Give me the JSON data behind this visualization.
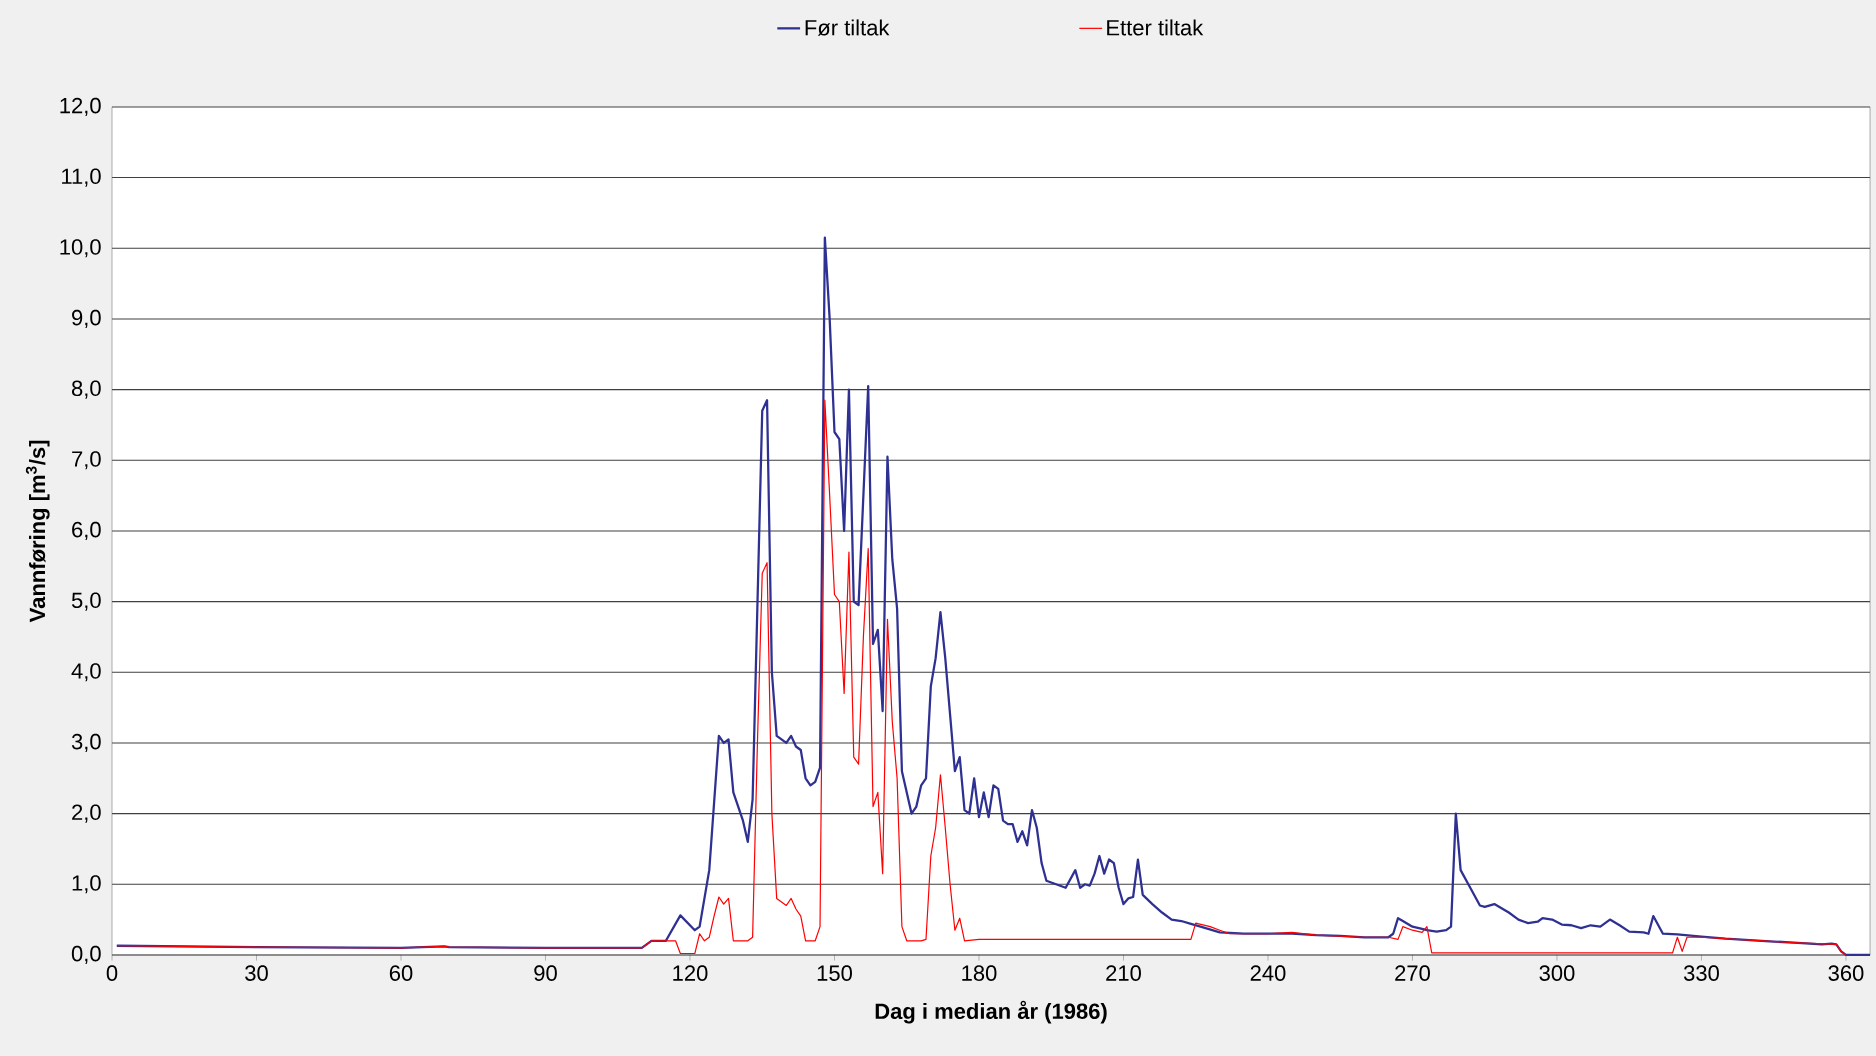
{
  "chart_data": {
    "type": "line",
    "xlabel": "Dag i median år (1986)",
    "ylabel": "Vannføring [m$^{3}$/s]",
    "xlim": [
      0,
      365
    ],
    "ylim": [
      0,
      12
    ],
    "xticks": [
      0,
      30,
      60,
      90,
      120,
      150,
      180,
      210,
      240,
      270,
      300,
      330,
      360
    ],
    "yticks": [
      {
        "value": 0,
        "label": "0,0"
      },
      {
        "value": 1,
        "label": "1,0"
      },
      {
        "value": 2,
        "label": "2,0"
      },
      {
        "value": 3,
        "label": "3,0"
      },
      {
        "value": 4,
        "label": "4,0"
      },
      {
        "value": 5,
        "label": "5,0"
      },
      {
        "value": 6,
        "label": "6,0"
      },
      {
        "value": 7,
        "label": "7,0"
      },
      {
        "value": 8,
        "label": "8,0"
      },
      {
        "value": 9,
        "label": "9,0"
      },
      {
        "value": 10,
        "label": "10,0"
      },
      {
        "value": 11,
        "label": "11,0"
      },
      {
        "value": 12,
        "label": "12,0"
      }
    ],
    "grid": "y",
    "legend": "top",
    "marker": "none",
    "line_style": "solid",
    "series": [
      {
        "name": "Før tiltak",
        "color": "#2e3192",
        "x": [
          1,
          30,
          60,
          69,
          70,
          90,
          110,
          112,
          115,
          118,
          121,
          122,
          124,
          126,
          127,
          128,
          129,
          131,
          132,
          133,
          135,
          136,
          137,
          138,
          139,
          140,
          141,
          142,
          143,
          144,
          145,
          146,
          147,
          148,
          149,
          150,
          151,
          152,
          153,
          154,
          155,
          156,
          157,
          158,
          159,
          160,
          161,
          162,
          163,
          164,
          165,
          166,
          167,
          168,
          169,
          170,
          171,
          172,
          173,
          174,
          175,
          176,
          177,
          178,
          179,
          180,
          181,
          182,
          183,
          184,
          185,
          186,
          187,
          188,
          189,
          190,
          191,
          192,
          193,
          194,
          196,
          198,
          200,
          201,
          202,
          203,
          204,
          205,
          206,
          207,
          208,
          209,
          210,
          211,
          212,
          213,
          214,
          216,
          218,
          220,
          222,
          224,
          226,
          230,
          235,
          240,
          245,
          250,
          255,
          260,
          265,
          266,
          267,
          268,
          270,
          272,
          273,
          275,
          277,
          278,
          279,
          280,
          282,
          284,
          285,
          287,
          290,
          292,
          294,
          296,
          297,
          299,
          301,
          303,
          305,
          307,
          309,
          311,
          313,
          315,
          318,
          319,
          320,
          322,
          325,
          330,
          335,
          340,
          345,
          350,
          355,
          357,
          358,
          359,
          360,
          365
        ],
        "values": [
          0.13,
          0.11,
          0.1,
          0.12,
          0.11,
          0.1,
          0.1,
          0.2,
          0.2,
          0.56,
          0.35,
          0.4,
          1.2,
          3.1,
          3.0,
          3.05,
          2.3,
          1.9,
          1.6,
          2.2,
          7.7,
          7.85,
          4.0,
          3.1,
          3.05,
          3.0,
          3.1,
          2.95,
          2.9,
          2.5,
          2.4,
          2.45,
          2.65,
          10.15,
          9.0,
          7.4,
          7.3,
          6.0,
          8.0,
          5.0,
          4.95,
          6.5,
          8.05,
          4.4,
          4.6,
          3.45,
          7.05,
          5.6,
          4.9,
          2.6,
          2.3,
          2.0,
          2.1,
          2.4,
          2.5,
          3.8,
          4.2,
          4.85,
          4.2,
          3.4,
          2.6,
          2.8,
          2.05,
          2.0,
          2.5,
          1.95,
          2.3,
          1.95,
          2.4,
          2.35,
          1.9,
          1.85,
          1.85,
          1.6,
          1.75,
          1.55,
          2.05,
          1.8,
          1.3,
          1.05,
          1.0,
          0.95,
          1.2,
          0.95,
          1.0,
          0.98,
          1.15,
          1.4,
          1.15,
          1.35,
          1.3,
          0.95,
          0.72,
          0.8,
          0.82,
          1.35,
          0.85,
          0.72,
          0.6,
          0.5,
          0.48,
          0.44,
          0.4,
          0.32,
          0.3,
          0.3,
          0.3,
          0.28,
          0.27,
          0.25,
          0.25,
          0.3,
          0.52,
          0.48,
          0.4,
          0.37,
          0.35,
          0.33,
          0.35,
          0.4,
          2.0,
          1.2,
          0.95,
          0.7,
          0.68,
          0.72,
          0.6,
          0.5,
          0.45,
          0.47,
          0.52,
          0.5,
          0.43,
          0.42,
          0.38,
          0.42,
          0.4,
          0.5,
          0.42,
          0.33,
          0.32,
          0.3,
          0.55,
          0.3,
          0.29,
          0.26,
          0.23,
          0.21,
          0.19,
          0.17,
          0.15,
          0.16,
          0.15,
          0.05,
          0.0,
          0.0
        ]
      },
      {
        "name": "Etter tiltak",
        "color": "#ff0000",
        "x": [
          1,
          30,
          60,
          69,
          70,
          90,
          110,
          112,
          115,
          116,
          117,
          118,
          120,
          121,
          122,
          123,
          124,
          125,
          126,
          127,
          128,
          129,
          131,
          132,
          133,
          134,
          135,
          136,
          137,
          138,
          139,
          140,
          141,
          142,
          143,
          144,
          146,
          147,
          148,
          149,
          150,
          151,
          152,
          153,
          154,
          155,
          156,
          157,
          158,
          159,
          160,
          161,
          162,
          163,
          164,
          165,
          168,
          169,
          170,
          171,
          172,
          173,
          174,
          175,
          176,
          177,
          180,
          200,
          224,
          225,
          228,
          230,
          232,
          240,
          245,
          250,
          260,
          265,
          267,
          268,
          270,
          272,
          273,
          274,
          300,
          320,
          324,
          325,
          326,
          327,
          330,
          340,
          350,
          358,
          359,
          360
        ],
        "values": [
          0.13,
          0.11,
          0.1,
          0.12,
          0.11,
          0.1,
          0.1,
          0.2,
          0.2,
          0.2,
          0.2,
          0.02,
          0.02,
          0.02,
          0.3,
          0.2,
          0.25,
          0.55,
          0.82,
          0.72,
          0.8,
          0.2,
          0.2,
          0.2,
          0.25,
          3.0,
          5.4,
          5.55,
          2.0,
          0.8,
          0.75,
          0.7,
          0.8,
          0.65,
          0.55,
          0.2,
          0.2,
          0.4,
          7.85,
          6.5,
          5.1,
          5.0,
          3.7,
          5.7,
          2.8,
          2.7,
          4.5,
          5.75,
          2.1,
          2.3,
          1.15,
          4.75,
          3.3,
          2.5,
          0.4,
          0.2,
          0.2,
          0.22,
          1.4,
          1.8,
          2.55,
          1.8,
          1.0,
          0.35,
          0.52,
          0.2,
          0.22,
          0.22,
          0.22,
          0.45,
          0.4,
          0.35,
          0.3,
          0.3,
          0.32,
          0.28,
          0.25,
          0.25,
          0.22,
          0.4,
          0.35,
          0.32,
          0.4,
          0.03,
          0.03,
          0.03,
          0.03,
          0.25,
          0.05,
          0.25,
          0.25,
          0.21,
          0.17,
          0.15,
          0.05,
          0.0
        ]
      }
    ]
  }
}
